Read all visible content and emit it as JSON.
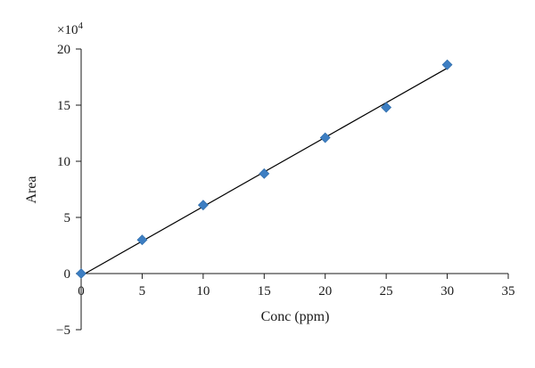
{
  "chart_data": {
    "type": "scatter",
    "title": "",
    "xlabel": "Conc (ppm)",
    "ylabel": "Area",
    "y_multiplier": "×10",
    "y_multiplier_exponent": "4",
    "xlim": [
      0,
      35
    ],
    "ylim": [
      -5,
      20
    ],
    "x_ticks": [
      0,
      5,
      10,
      15,
      20,
      25,
      30,
      35
    ],
    "y_ticks": [
      -5,
      0,
      5,
      10,
      15,
      20
    ],
    "grid": false,
    "legend": "none",
    "series": [
      {
        "marker": "diamond",
        "color": "#3d7ec2",
        "x": [
          0,
          5,
          10,
          15,
          20,
          25,
          30
        ],
        "y": [
          0,
          3.0,
          6.1,
          8.9,
          12.1,
          14.8,
          18.6
        ]
      }
    ],
    "trendline": {
      "type": "linear",
      "color": "#000000",
      "x": [
        0,
        30
      ],
      "y": [
        -0.2,
        18.3
      ]
    }
  }
}
